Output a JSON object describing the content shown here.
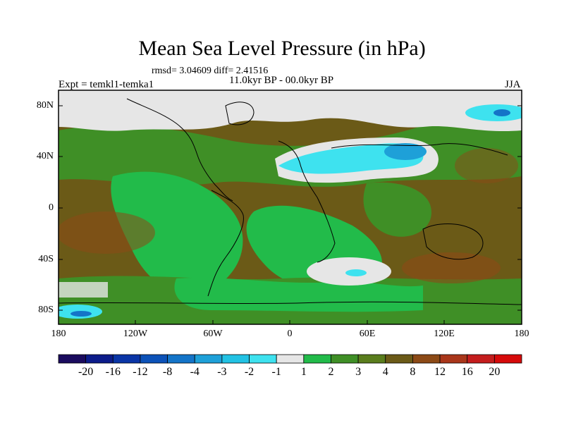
{
  "title": "Mean Sea Level Pressure (in hPa)",
  "stats": "rmsd= 3.04609  diff= 2.41516",
  "experiment": "Expt = temkl1-temka1",
  "period": "11.0kyr BP - 00.0kyr BP",
  "season": "JJA",
  "lat_labels": [
    "80N",
    "40N",
    "0",
    "40S",
    "80S"
  ],
  "lon_labels": [
    "180",
    "120W",
    "60W",
    "0",
    "60E",
    "120E",
    "180"
  ],
  "colorbar": {
    "labels": [
      "-20",
      "-16",
      "-12",
      "-8",
      "-4",
      "-3",
      "-2",
      "-1",
      "1",
      "2",
      "3",
      "4",
      "8",
      "12",
      "16",
      "20"
    ],
    "colors": [
      "#1a0b5e",
      "#0c1c8a",
      "#0a35a6",
      "#0c52b8",
      "#1474c8",
      "#1ea0d8",
      "#22c2e4",
      "#3ee2ef",
      "#e6e6e6",
      "#22bb4a",
      "#3f8f26",
      "#5a7d1d",
      "#6b5a17",
      "#8c4a16",
      "#a9361a",
      "#c41d1d",
      "#d60a0a"
    ]
  },
  "colors": {
    "ocean_base": "#6b5a17",
    "green_light": "#22bb4a",
    "green_dark": "#3f8f26",
    "olive": "#5a7d1d",
    "brown": "#8c4a16",
    "white": "#e6e6e6",
    "cyan": "#3ee2ef",
    "blue": "#1ea0d8"
  }
}
